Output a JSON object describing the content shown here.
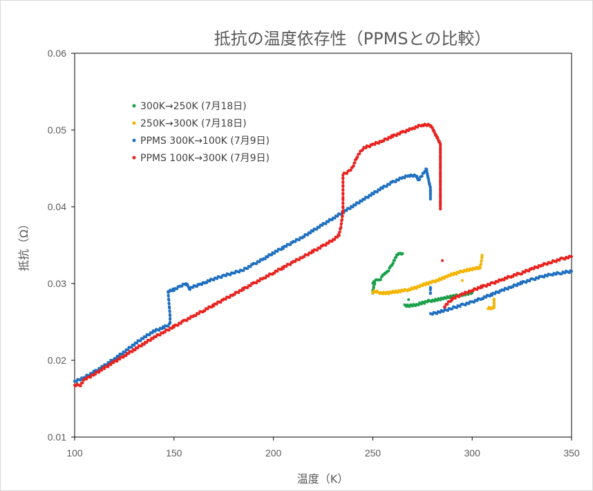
{
  "chart_data": {
    "type": "scatter",
    "title": "抵抗の温度依存性（PPMSとの比較）",
    "xlabel": "温度（K）",
    "ylabel": "抵抗（Ω）",
    "xlim": [
      100,
      350
    ],
    "ylim": [
      0.01,
      0.06
    ],
    "x_ticks": [
      "100",
      "150",
      "200",
      "250",
      "300",
      "350"
    ],
    "y_ticks": [
      "0.01",
      "0.02",
      "0.03",
      "0.04",
      "0.05",
      "0.06"
    ],
    "grid": false,
    "legend_position": "top-left",
    "series": [
      {
        "name": "300K→250K (7月18日)",
        "color": "#1aa04a",
        "points": [
          [
            250,
            0.03
          ],
          [
            250.5,
            0.0303
          ],
          [
            251,
            0.0304
          ],
          [
            252,
            0.0304
          ],
          [
            253,
            0.0305
          ],
          [
            254,
            0.0306
          ],
          [
            255,
            0.031
          ],
          [
            256,
            0.0313
          ],
          [
            257,
            0.0316
          ],
          [
            258,
            0.0318
          ],
          [
            259,
            0.0322
          ],
          [
            260,
            0.0326
          ],
          [
            261,
            0.0331
          ],
          [
            262,
            0.0336
          ],
          [
            263,
            0.0339
          ],
          [
            264,
            0.034
          ],
          [
            265,
            0.0339
          ],
          [
            250,
            0.0287
          ],
          [
            250,
            0.0292
          ],
          [
            250.5,
            0.0296
          ],
          [
            251,
            0.03
          ],
          [
            266,
            0.0272
          ],
          [
            268,
            0.0271
          ],
          [
            270,
            0.0272
          ],
          [
            272,
            0.0272
          ],
          [
            274,
            0.0274
          ],
          [
            276,
            0.0275
          ],
          [
            278,
            0.0277
          ],
          [
            280,
            0.0278
          ],
          [
            282,
            0.0279
          ],
          [
            284,
            0.028
          ],
          [
            286,
            0.0281
          ],
          [
            288,
            0.0282
          ],
          [
            290,
            0.0283
          ],
          [
            292,
            0.0284
          ],
          [
            294,
            0.0285
          ],
          [
            296,
            0.0286
          ],
          [
            298,
            0.0287
          ],
          [
            300,
            0.0288
          ],
          [
            268,
            0.0279
          ]
        ]
      },
      {
        "name": "250K→300K (7月18日)",
        "color": "#f5b400",
        "points": [
          [
            250,
            0.0289
          ],
          [
            252,
            0.0289
          ],
          [
            254,
            0.0288
          ],
          [
            256,
            0.0288
          ],
          [
            258,
            0.0288
          ],
          [
            260,
            0.0289
          ],
          [
            262,
            0.0289
          ],
          [
            264,
            0.029
          ],
          [
            266,
            0.0291
          ],
          [
            268,
            0.0292
          ],
          [
            270,
            0.0294
          ],
          [
            272,
            0.0295
          ],
          [
            274,
            0.0297
          ],
          [
            276,
            0.0299
          ],
          [
            278,
            0.03
          ],
          [
            280,
            0.0302
          ],
          [
            282,
            0.0304
          ],
          [
            284,
            0.0306
          ],
          [
            286,
            0.0308
          ],
          [
            288,
            0.031
          ],
          [
            290,
            0.0312
          ],
          [
            292,
            0.0313
          ],
          [
            294,
            0.0315
          ],
          [
            296,
            0.0317
          ],
          [
            298,
            0.0318
          ],
          [
            300,
            0.0319
          ],
          [
            302,
            0.032
          ],
          [
            304,
            0.032
          ],
          [
            305,
            0.0335
          ],
          [
            305,
            0.0337
          ],
          [
            295,
            0.0304
          ],
          [
            308,
            0.0268
          ],
          [
            310,
            0.0267
          ],
          [
            311,
            0.0268
          ],
          [
            311,
            0.0272
          ],
          [
            311,
            0.0276
          ],
          [
            311,
            0.028
          ]
        ]
      },
      {
        "name": "PPMS 300K→100K (7月9日)",
        "color": "#1f6fbf",
        "points": [
          [
            100,
            0.0172
          ],
          [
            105,
            0.0178
          ],
          [
            110,
            0.0185
          ],
          [
            115,
            0.0193
          ],
          [
            120,
            0.0202
          ],
          [
            125,
            0.0211
          ],
          [
            130,
            0.0221
          ],
          [
            135,
            0.023
          ],
          [
            140,
            0.0238
          ],
          [
            145,
            0.0243
          ],
          [
            148,
            0.0247
          ],
          [
            148,
            0.0258
          ],
          [
            147,
            0.029
          ],
          [
            150,
            0.0292
          ],
          [
            153,
            0.0296
          ],
          [
            156,
            0.03
          ],
          [
            158,
            0.0293
          ],
          [
            160,
            0.0296
          ],
          [
            163,
            0.0299
          ],
          [
            166,
            0.0302
          ],
          [
            170,
            0.0306
          ],
          [
            175,
            0.031
          ],
          [
            180,
            0.0314
          ],
          [
            185,
            0.0318
          ],
          [
            190,
            0.0325
          ],
          [
            195,
            0.0332
          ],
          [
            200,
            0.034
          ],
          [
            205,
            0.0347
          ],
          [
            210,
            0.0354
          ],
          [
            215,
            0.0361
          ],
          [
            220,
            0.0369
          ],
          [
            225,
            0.0377
          ],
          [
            230,
            0.0385
          ],
          [
            235,
            0.0393
          ],
          [
            240,
            0.0401
          ],
          [
            245,
            0.0409
          ],
          [
            250,
            0.0417
          ],
          [
            255,
            0.0425
          ],
          [
            260,
            0.0432
          ],
          [
            265,
            0.0438
          ],
          [
            268,
            0.0441
          ],
          [
            272,
            0.044
          ],
          [
            273,
            0.0434
          ],
          [
            276,
            0.0446
          ],
          [
            277,
            0.0449
          ],
          [
            278,
            0.0435
          ],
          [
            279,
            0.0425
          ],
          [
            279,
            0.041
          ],
          [
            279,
            0.026
          ],
          [
            285,
            0.0264
          ],
          [
            290,
            0.0268
          ],
          [
            295,
            0.0272
          ],
          [
            300,
            0.0276
          ],
          [
            305,
            0.0281
          ],
          [
            310,
            0.0286
          ],
          [
            315,
            0.0291
          ],
          [
            320,
            0.0296
          ],
          [
            325,
            0.0301
          ],
          [
            330,
            0.0305
          ],
          [
            335,
            0.0309
          ],
          [
            340,
            0.0312
          ],
          [
            345,
            0.0314
          ],
          [
            350,
            0.0316
          ],
          [
            279,
            0.0286
          ],
          [
            279,
            0.0295
          ]
        ]
      },
      {
        "name": "PPMS 100K→300K (7月9日)",
        "color": "#e8231f",
        "points": [
          [
            100,
            0.0168
          ],
          [
            103,
            0.0168
          ],
          [
            105,
            0.0175
          ],
          [
            110,
            0.0182
          ],
          [
            115,
            0.019
          ],
          [
            120,
            0.0198
          ],
          [
            125,
            0.0206
          ],
          [
            130,
            0.0214
          ],
          [
            135,
            0.0222
          ],
          [
            140,
            0.023
          ],
          [
            145,
            0.0237
          ],
          [
            150,
            0.0244
          ],
          [
            155,
            0.0251
          ],
          [
            160,
            0.0258
          ],
          [
            165,
            0.0265
          ],
          [
            170,
            0.0272
          ],
          [
            175,
            0.0279
          ],
          [
            180,
            0.0286
          ],
          [
            185,
            0.0293
          ],
          [
            190,
            0.03
          ],
          [
            195,
            0.0307
          ],
          [
            200,
            0.0314
          ],
          [
            205,
            0.0321
          ],
          [
            210,
            0.0328
          ],
          [
            215,
            0.0335
          ],
          [
            220,
            0.0342
          ],
          [
            225,
            0.0349
          ],
          [
            230,
            0.0357
          ],
          [
            233,
            0.0363
          ],
          [
            234,
            0.0375
          ],
          [
            235,
            0.0393
          ],
          [
            235,
            0.0412
          ],
          [
            235,
            0.0442
          ],
          [
            238,
            0.0446
          ],
          [
            240,
            0.0452
          ],
          [
            242,
            0.0465
          ],
          [
            245,
            0.0476
          ],
          [
            250,
            0.0481
          ],
          [
            255,
            0.0486
          ],
          [
            260,
            0.0492
          ],
          [
            265,
            0.0497
          ],
          [
            270,
            0.0502
          ],
          [
            275,
            0.0507
          ],
          [
            279,
            0.0506
          ],
          [
            280,
            0.0502
          ],
          [
            282,
            0.0492
          ],
          [
            284,
            0.0482
          ],
          [
            284,
            0.0449
          ],
          [
            284,
            0.042
          ],
          [
            284,
            0.0397
          ],
          [
            285,
            0.033
          ],
          [
            286,
            0.027
          ],
          [
            290,
            0.028
          ],
          [
            295,
            0.0286
          ],
          [
            300,
            0.0291
          ],
          [
            305,
            0.0296
          ],
          [
            310,
            0.03
          ],
          [
            315,
            0.0305
          ],
          [
            320,
            0.031
          ],
          [
            325,
            0.0314
          ],
          [
            330,
            0.0319
          ],
          [
            335,
            0.0324
          ],
          [
            340,
            0.0328
          ],
          [
            345,
            0.0332
          ],
          [
            350,
            0.0335
          ]
        ]
      }
    ]
  }
}
